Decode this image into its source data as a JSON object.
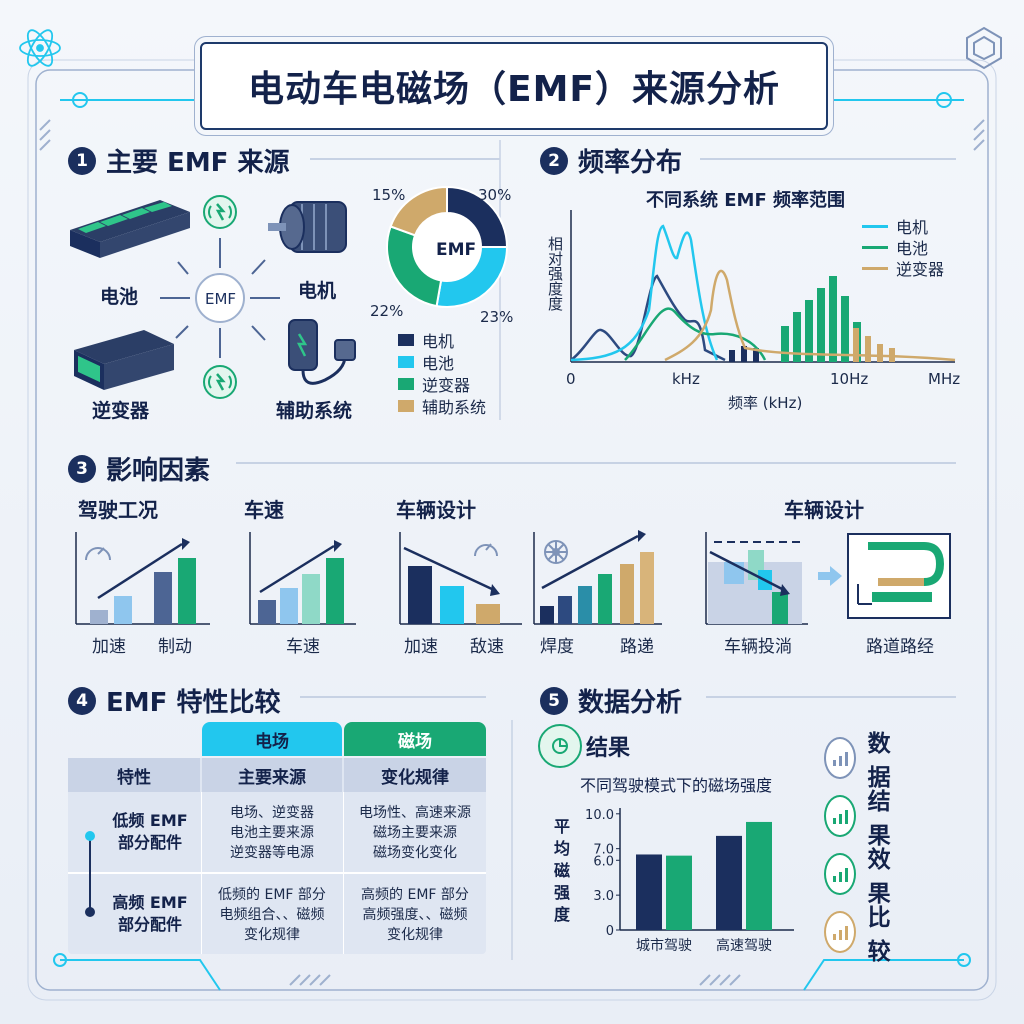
{
  "title": "电动车电磁场（EMF）来源分析",
  "sections": {
    "s1": {
      "num": "1",
      "title": "主要 EMF 来源"
    },
    "s2": {
      "num": "2",
      "title": "频率分布"
    },
    "s3": {
      "num": "3",
      "title": "影响因素"
    },
    "s4": {
      "num": "4",
      "title": "EMF 特性比较"
    },
    "s5": {
      "num": "5",
      "title": "数据分析"
    }
  },
  "sources": {
    "center": "EMF",
    "battery": "电池",
    "motor": "电机",
    "inverter": "逆变器",
    "aux": "辅助系统"
  },
  "pie": {
    "center": "EMF",
    "labels": {
      "top_left": "15%",
      "top_right": "30%",
      "bottom_left": "22%",
      "bottom_right": "23%"
    },
    "legend": [
      {
        "label": "电机",
        "color": "#1b2f5e"
      },
      {
        "label": "电池",
        "color": "#22c7ee"
      },
      {
        "label": "逆变器",
        "color": "#19a874"
      },
      {
        "label": "辅助系统",
        "color": "#cfa96b"
      }
    ]
  },
  "freq": {
    "title": "不同系统 EMF 频率范围",
    "ylabel": "相对强度度",
    "xlabel": "频率 (kHz)",
    "ticks": [
      "0",
      "kHz",
      "10Hz",
      "MHz"
    ],
    "legend": [
      {
        "label": "电机",
        "color": "#22c7ee"
      },
      {
        "label": "电池",
        "color": "#19a874"
      },
      {
        "label": "逆变器",
        "color": "#cfa96b"
      }
    ]
  },
  "factors": {
    "groups": [
      {
        "title": "驾驶工况",
        "labels": [
          "加速",
          "制动"
        ]
      },
      {
        "title": "车速",
        "labels": [
          "车速"
        ]
      },
      {
        "title": "车辆设计",
        "labels": [
          "加速",
          "敌速"
        ]
      },
      {
        "title": "",
        "labels": [
          "焊度",
          "路递"
        ]
      },
      {
        "title": "车辆设计",
        "labels": [
          "车辆投淌"
        ]
      },
      {
        "title": "",
        "labels": [
          "路道路经"
        ]
      }
    ]
  },
  "compare": {
    "col_electric": "电场",
    "col_magnetic": "磁场",
    "headers": [
      "特性",
      "主要来源",
      "变化规律"
    ],
    "rows": [
      {
        "label": "低频 EMF\n部分配件",
        "c1": "电场、逆变器\n电池主要来源\n逆变器等电源",
        "c2": "电场性、高速来源\n磁场主要来源\n磁场变化变化"
      },
      {
        "label": "高频 EMF\n部分配件",
        "c1": "低频的 EMF 部分\n电频组合、、磁频\n变化规律",
        "c2": "高频的 EMF 部分\n高频强度、、磁频\n变化规律"
      }
    ]
  },
  "analysis": {
    "result_label": "结果",
    "chart_title": "不同驾驶模式下的磁场强度",
    "ylabel": "平均磁强度",
    "side": [
      "数据",
      "结果",
      "效果",
      "比较"
    ]
  },
  "chart_data": {
    "type": "bar",
    "title": "不同驾驶模式下的磁场强度",
    "ylabel": "平均磁强度",
    "categories": [
      "城市驾驶",
      "高速驾驶"
    ],
    "series": [
      {
        "values": [
          6.5,
          8.1
        ],
        "color": "#1b2f5e"
      },
      {
        "values": [
          6.4,
          9.3
        ],
        "color": "#19a874"
      }
    ],
    "yticks": [
      "0",
      "3.0",
      "6.0",
      "7.0",
      "10.0"
    ],
    "ylim": [
      0,
      10.5
    ]
  }
}
